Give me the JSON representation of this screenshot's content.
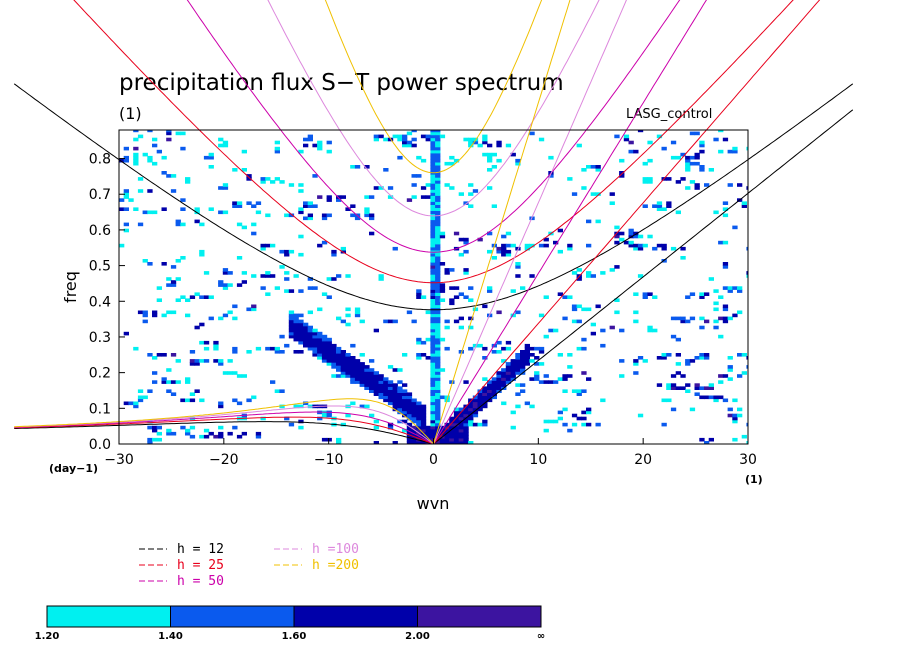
{
  "chart_data": {
    "type": "heatmap",
    "title": "precipitation flux S−T power spectrum",
    "subtitle": "(1)",
    "run_label": "LASG_control",
    "xlabel": "wvn",
    "ylabel": "freq",
    "x_unit": "(1)",
    "y_unit": "(day−1)",
    "xlim": [
      -30,
      30
    ],
    "ylim": [
      0.0,
      0.88
    ],
    "x_ticks": [
      "−30",
      "−20",
      "−10",
      "0",
      "10",
      "20",
      "30"
    ],
    "y_ticks": [
      "0.0",
      "0.1",
      "0.2",
      "0.3",
      "0.4",
      "0.5",
      "0.6",
      "0.7",
      "0.8"
    ],
    "dispersion_curves": [
      {
        "name": "h = 12",
        "equivalent_depth": 12,
        "color": "#000000"
      },
      {
        "name": "h = 25",
        "equivalent_depth": 25,
        "color": "#e8001c"
      },
      {
        "name": "h = 50",
        "equivalent_depth": 50,
        "color": "#cc00aa"
      },
      {
        "name": "h =100",
        "equivalent_depth": 100,
        "color": "#dd88dd"
      },
      {
        "name": "h =200",
        "equivalent_depth": 200,
        "color": "#f0c000"
      }
    ],
    "colorbar": {
      "levels": [
        "1.20",
        "1.40",
        "1.60",
        "2.00",
        "∞"
      ],
      "colors": [
        "#00f0f0",
        "#0a5aee",
        "#0000aa",
        "#3c14a0"
      ]
    },
    "features": [
      {
        "name": "wavenumber-0 column",
        "x": 0,
        "y_range": [
          0.0,
          0.88
        ],
        "level": "1.40-1.60"
      },
      {
        "name": "Kelvin band",
        "x_range": [
          0,
          8
        ],
        "y_range": [
          0.0,
          0.22
        ],
        "level": "1.60-2.00"
      },
      {
        "name": "westward low-frequency band",
        "x_range": [
          -14,
          -2
        ],
        "y_range": [
          0.02,
          0.35
        ],
        "level": "1.60-2.00"
      }
    ]
  }
}
